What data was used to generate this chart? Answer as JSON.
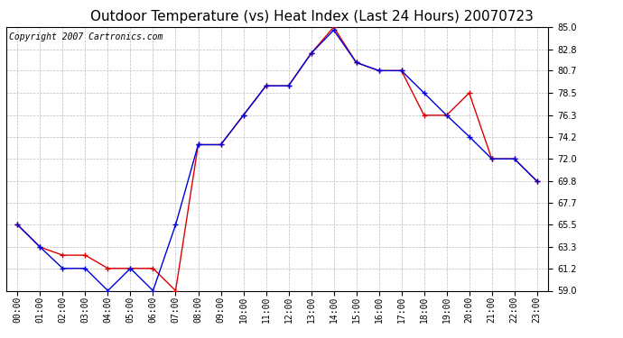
{
  "title": "Outdoor Temperature (vs) Heat Index (Last 24 Hours) 20070723",
  "copyright": "Copyright 2007 Cartronics.com",
  "hours": [
    "00:00",
    "01:00",
    "02:00",
    "03:00",
    "04:00",
    "05:00",
    "06:00",
    "07:00",
    "08:00",
    "09:00",
    "10:00",
    "11:00",
    "12:00",
    "13:00",
    "14:00",
    "15:00",
    "16:00",
    "17:00",
    "18:00",
    "19:00",
    "20:00",
    "21:00",
    "22:00",
    "23:00"
  ],
  "outdoor_temp": [
    65.5,
    63.3,
    61.2,
    61.2,
    59.0,
    61.2,
    59.0,
    65.5,
    73.4,
    73.4,
    76.3,
    79.2,
    79.2,
    82.4,
    84.7,
    81.5,
    80.7,
    80.7,
    78.5,
    76.3,
    74.2,
    72.0,
    72.0,
    69.8
  ],
  "heat_index": [
    65.5,
    63.3,
    62.5,
    62.5,
    61.2,
    61.2,
    61.2,
    59.0,
    73.4,
    73.4,
    76.3,
    79.2,
    79.2,
    82.4,
    85.0,
    81.5,
    80.7,
    80.7,
    76.3,
    76.3,
    78.5,
    72.0,
    72.0,
    69.8
  ],
  "outdoor_color": "#0000dd",
  "heat_index_color": "#dd0000",
  "bg_color": "#ffffff",
  "plot_bg_color": "#ffffff",
  "grid_color": "#bbbbbb",
  "ylim": [
    59.0,
    85.0
  ],
  "yticks": [
    59.0,
    61.2,
    63.3,
    65.5,
    67.7,
    69.8,
    72.0,
    74.2,
    76.3,
    78.5,
    80.7,
    82.8,
    85.0
  ],
  "title_fontsize": 11,
  "copyright_fontsize": 7
}
